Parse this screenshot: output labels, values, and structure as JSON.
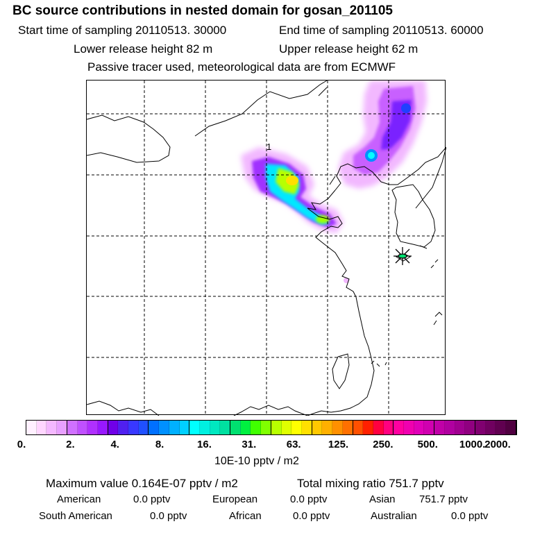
{
  "header": {
    "title": "BC  source contributions in nested domain for gosan_201105",
    "start_time": "Start time of sampling 20110513. 30000",
    "end_time": "End time of sampling 20110513. 60000",
    "lower_height": "Lower release height   82 m",
    "upper_height": "Upper release height   62 m",
    "tracer_note": "Passive tracer used, meteorological data are from ECMWF"
  },
  "map": {
    "marker_label": "1",
    "colors": {
      "coast": "#000000",
      "grid": "#000000",
      "receptor": "#000000"
    }
  },
  "legend": {
    "tick_labels": [
      "0.",
      "2.",
      "4.",
      "8.",
      "16.",
      "31.",
      "63.",
      "125.",
      "250.",
      "500.",
      "1000.",
      "2000."
    ],
    "units": "10E-10 pptv / m2",
    "colors": [
      "#fff0ff",
      "#ffd6ff",
      "#f4b8ff",
      "#e8a0ff",
      "#d070ff",
      "#c050ff",
      "#b030ff",
      "#9818ff",
      "#7000e8",
      "#5020f0",
      "#3838ff",
      "#2050ff",
      "#0070ff",
      "#0090ff",
      "#00b0ff",
      "#00d0ff",
      "#00ffff",
      "#00f0e0",
      "#00e8c0",
      "#00e0a0",
      "#00e070",
      "#00f040",
      "#40ff00",
      "#80ff00",
      "#b8ff00",
      "#e0ff00",
      "#ffff00",
      "#ffe000",
      "#ffc800",
      "#ffb000",
      "#ff9000",
      "#ff7000",
      "#ff5000",
      "#ff2000",
      "#ff0040",
      "#ff0080",
      "#ff00a0",
      "#f000b0",
      "#e000b8",
      "#d000b0",
      "#c000a8",
      "#b000a0",
      "#a00090",
      "#900080",
      "#800070",
      "#700060",
      "#600050",
      "#500040"
    ]
  },
  "summary": {
    "max_value": "Maximum value  0.164E-07 pptv / m2",
    "total_mixing": "Total mixing ratio      751.7 pptv",
    "regions": [
      {
        "name": "American",
        "value": "0.0 pptv"
      },
      {
        "name": "European",
        "value": "0.0 pptv"
      },
      {
        "name": "Asian",
        "value": "751.7 pptv"
      },
      {
        "name": "South American",
        "value": "0.0 pptv"
      },
      {
        "name": "African",
        "value": "0.0 pptv"
      },
      {
        "name": "Australian",
        "value": "0.0 pptv"
      }
    ]
  }
}
